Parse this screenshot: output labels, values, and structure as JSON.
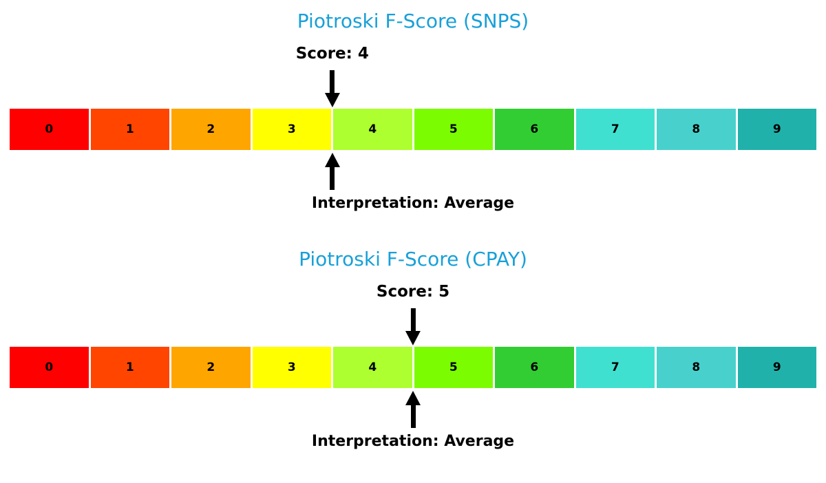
{
  "page": {
    "background": "#ffffff"
  },
  "chart_data": [
    {
      "type": "scale",
      "title": "Piotroski F-Score (SNPS)",
      "title_color": "#18A0D8",
      "score": 4,
      "score_label": "Score: 4",
      "interpretation": "Interpretation: Average",
      "scale_range": [
        0,
        9
      ],
      "categories": [
        "0",
        "1",
        "2",
        "3",
        "4",
        "5",
        "6",
        "7",
        "8",
        "9"
      ],
      "segment_colors": [
        "#FF0000",
        "#FF4500",
        "#FFA500",
        "#FFFF00",
        "#ADFF2F",
        "#7CFC00",
        "#32CD32",
        "#40E0D0",
        "#48D1CC",
        "#20B2AA"
      ],
      "arrow_color": "#000000",
      "legend_position": "none",
      "grid": false
    },
    {
      "type": "scale",
      "title": "Piotroski F-Score (CPAY)",
      "title_color": "#18A0D8",
      "score": 5,
      "score_label": "Score: 5",
      "interpretation": "Interpretation: Average",
      "scale_range": [
        0,
        9
      ],
      "categories": [
        "0",
        "1",
        "2",
        "3",
        "4",
        "5",
        "6",
        "7",
        "8",
        "9"
      ],
      "segment_colors": [
        "#FF0000",
        "#FF4500",
        "#FFA500",
        "#FFFF00",
        "#ADFF2F",
        "#7CFC00",
        "#32CD32",
        "#40E0D0",
        "#48D1CC",
        "#20B2AA"
      ],
      "arrow_color": "#000000",
      "legend_position": "none",
      "grid": false
    }
  ]
}
